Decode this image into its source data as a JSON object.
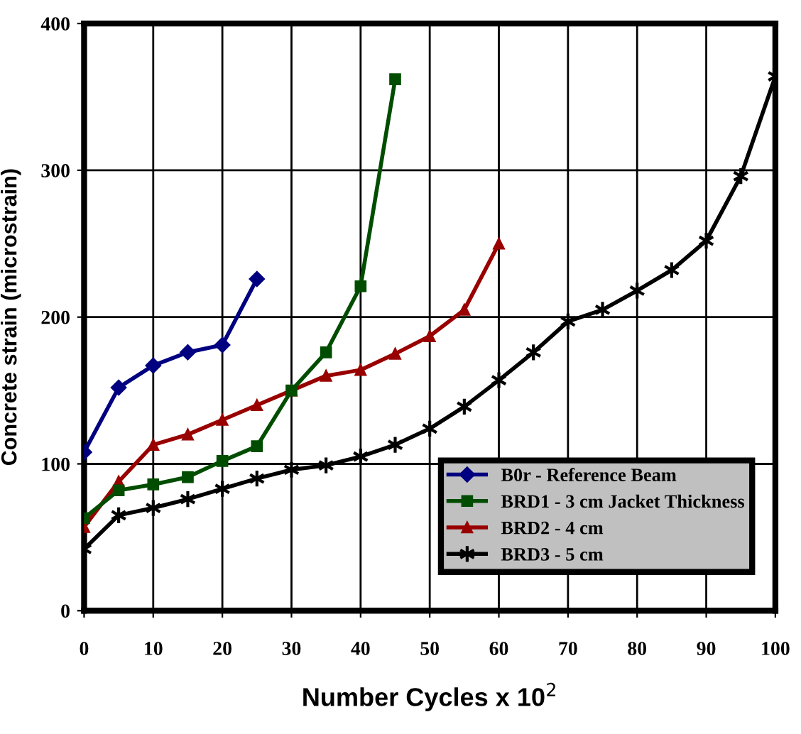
{
  "chart_data": {
    "type": "line",
    "xlabel": "Number Cycles x 10$^{2}$",
    "ylabel": "Concrete strain (microstrain)",
    "xlim": [
      0,
      100
    ],
    "ylim": [
      0,
      400
    ],
    "xticks": [
      0,
      10,
      20,
      30,
      40,
      50,
      60,
      70,
      80,
      90,
      100
    ],
    "yticks": [
      0,
      100,
      200,
      300,
      400
    ],
    "grid": true,
    "legend": "bottom right",
    "line_style": "solid",
    "series": [
      {
        "name": "B0r - Reference Beam",
        "color": "#000080",
        "marker": "diamond",
        "x": [
          0,
          5,
          10,
          15,
          20,
          25
        ],
        "values": [
          108,
          152,
          167,
          176,
          181,
          226
        ]
      },
      {
        "name": "BRD1 - 3 cm Jacket Thickness",
        "color": "#004d00",
        "marker": "square",
        "x": [
          0,
          5,
          10,
          15,
          20,
          25,
          30,
          35,
          40,
          45
        ],
        "values": [
          63,
          82,
          86,
          91,
          102,
          112,
          150,
          176,
          221,
          362
        ]
      },
      {
        "name": "BRD2 - 4 cm",
        "color": "#990000",
        "marker": "triangle",
        "x": [
          0,
          5,
          10,
          15,
          20,
          25,
          30,
          35,
          40,
          45,
          50,
          55,
          60
        ],
        "values": [
          57,
          88,
          113,
          120,
          130,
          140,
          150,
          160,
          164,
          175,
          187,
          205,
          250
        ]
      },
      {
        "name": "BRD3 - 5 cm",
        "color": "#000000",
        "marker": "cross",
        "x": [
          0,
          5,
          10,
          15,
          20,
          25,
          30,
          35,
          40,
          45,
          50,
          55,
          60,
          65,
          70,
          75,
          80,
          85,
          90,
          95,
          100
        ],
        "values": [
          42,
          65,
          70,
          76,
          83,
          90,
          96,
          99,
          105,
          113,
          124,
          139,
          157,
          176,
          197,
          205,
          218,
          232,
          252,
          296,
          364
        ]
      }
    ]
  }
}
